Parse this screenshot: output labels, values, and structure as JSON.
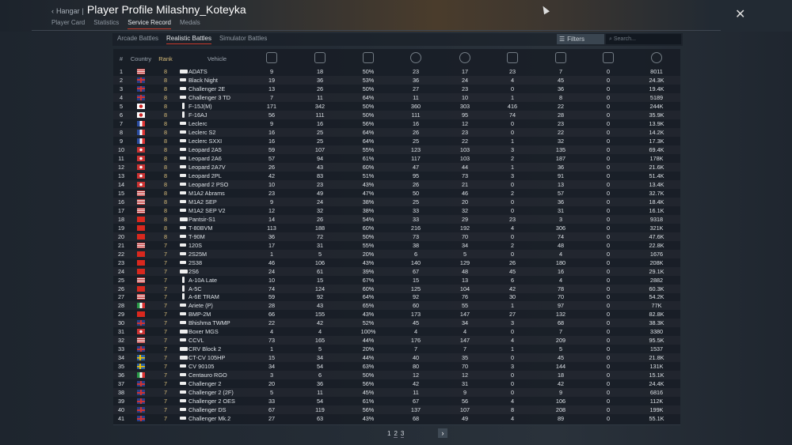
{
  "header": {
    "back_label": "Hangar",
    "title": "Player Profile Milashny_Koteyka"
  },
  "tabs": [
    "Player Card",
    "Statistics",
    "Service Record",
    "Medals"
  ],
  "active_tab": "Service Record",
  "subtabs": [
    "Arcade Battles",
    "Realistic Battles",
    "Simulator Battles"
  ],
  "active_subtab": "Realistic Battles",
  "filters_label": "Filters",
  "search_placeholder": "Search...",
  "columns": {
    "num": "#",
    "country": "Country",
    "rank": "Rank",
    "vehicle": "Vehicle",
    "icons": [
      "victories-icon",
      "battles-icon",
      "win-rate-icon",
      "respawns-icon",
      "deaths-icon",
      "air-kills-icon",
      "ground-kills-icon",
      "naval-kills-icon",
      "score-icon"
    ]
  },
  "rows": [
    [
      "us",
      8,
      "spaa",
      "ADATS",
      "9",
      "18",
      "50%",
      "23",
      "17",
      "23",
      "7",
      "0",
      "8011"
    ],
    [
      "uk",
      8,
      "tank",
      "Black Night",
      "19",
      "36",
      "53%",
      "36",
      "24",
      "4",
      "45",
      "0",
      "24.3K"
    ],
    [
      "uk",
      8,
      "tank",
      "Challenger 2E",
      "13",
      "26",
      "50%",
      "27",
      "23",
      "0",
      "36",
      "0",
      "19.4K"
    ],
    [
      "uk",
      8,
      "tank",
      "Challenger 3 TD",
      "7",
      "11",
      "64%",
      "11",
      "10",
      "1",
      "8",
      "0",
      "5189"
    ],
    [
      "jp",
      8,
      "jet",
      "F-15J(M)",
      "171",
      "342",
      "50%",
      "360",
      "303",
      "416",
      "22",
      "0",
      "244K"
    ],
    [
      "jp",
      8,
      "jet",
      "F-16AJ",
      "56",
      "111",
      "50%",
      "111",
      "95",
      "74",
      "28",
      "0",
      "35.9K"
    ],
    [
      "fr",
      8,
      "tank",
      "Leclerc",
      "9",
      "16",
      "56%",
      "16",
      "12",
      "0",
      "23",
      "0",
      "13.9K"
    ],
    [
      "fr",
      8,
      "tank",
      "Leclerc S2",
      "16",
      "25",
      "64%",
      "26",
      "23",
      "0",
      "22",
      "0",
      "14.2K"
    ],
    [
      "fr",
      8,
      "tank",
      "Leclerc SXXI",
      "16",
      "25",
      "64%",
      "25",
      "22",
      "1",
      "32",
      "0",
      "17.3K"
    ],
    [
      "de",
      8,
      "tank",
      "Leopard 2A5",
      "59",
      "107",
      "55%",
      "123",
      "103",
      "3",
      "135",
      "0",
      "69.4K"
    ],
    [
      "de",
      8,
      "tank",
      "Leopard 2A6",
      "57",
      "94",
      "61%",
      "117",
      "103",
      "2",
      "187",
      "0",
      "178K"
    ],
    [
      "de",
      8,
      "tank",
      "Leopard 2A7V",
      "26",
      "43",
      "60%",
      "47",
      "44",
      "1",
      "36",
      "0",
      "21.6K"
    ],
    [
      "de",
      8,
      "tank",
      "Leopard 2PL",
      "42",
      "83",
      "51%",
      "95",
      "73",
      "3",
      "91",
      "0",
      "51.4K"
    ],
    [
      "de",
      8,
      "tank",
      "Leopard 2 PSO",
      "10",
      "23",
      "43%",
      "26",
      "21",
      "0",
      "13",
      "0",
      "13.4K"
    ],
    [
      "us",
      8,
      "tank",
      "M1A2 Abrams",
      "23",
      "49",
      "47%",
      "50",
      "46",
      "2",
      "57",
      "0",
      "32.7K"
    ],
    [
      "us",
      8,
      "tank",
      "M1A2 SEP",
      "9",
      "24",
      "38%",
      "25",
      "20",
      "0",
      "36",
      "0",
      "18.4K"
    ],
    [
      "us",
      8,
      "tank",
      "M1A2 SEP V2",
      "12",
      "32",
      "38%",
      "33",
      "32",
      "0",
      "31",
      "0",
      "16.1K"
    ],
    [
      "cn",
      8,
      "spaa",
      "Pantsir-S1",
      "14",
      "26",
      "54%",
      "33",
      "29",
      "23",
      "3",
      "0",
      "9318"
    ],
    [
      "cn",
      8,
      "tank",
      "T-80BVM",
      "113",
      "188",
      "60%",
      "216",
      "192",
      "4",
      "306",
      "0",
      "321K"
    ],
    [
      "cn",
      8,
      "tank",
      "T-90M",
      "36",
      "72",
      "50%",
      "73",
      "70",
      "0",
      "74",
      "0",
      "47.6K"
    ],
    [
      "us",
      7,
      "tank",
      "120S",
      "17",
      "31",
      "55%",
      "38",
      "34",
      "2",
      "48",
      "0",
      "22.8K"
    ],
    [
      "cn",
      7,
      "tank",
      "2S25M",
      "1",
      "5",
      "20%",
      "6",
      "5",
      "0",
      "4",
      "0",
      "1676"
    ],
    [
      "cn",
      7,
      "tank",
      "2S38",
      "46",
      "106",
      "43%",
      "140",
      "129",
      "26",
      "180",
      "0",
      "208K"
    ],
    [
      "cn",
      7,
      "spaa",
      "2S6",
      "24",
      "61",
      "39%",
      "67",
      "48",
      "45",
      "16",
      "0",
      "29.1K"
    ],
    [
      "us",
      7,
      "plane",
      "A-10A Late",
      "10",
      "15",
      "67%",
      "15",
      "13",
      "6",
      "4",
      "0",
      "2882"
    ],
    [
      "cn",
      7,
      "jet",
      "A-5C",
      "74",
      "124",
      "60%",
      "125",
      "104",
      "42",
      "78",
      "0",
      "60.3K"
    ],
    [
      "us",
      7,
      "plane",
      "A-6E TRAM",
      "59",
      "92",
      "64%",
      "92",
      "76",
      "30",
      "70",
      "0",
      "54.2K"
    ],
    [
      "it",
      7,
      "tank",
      "Ariete (P)",
      "28",
      "43",
      "65%",
      "60",
      "55",
      "1",
      "97",
      "0",
      "77K"
    ],
    [
      "cn",
      7,
      "tank",
      "BMP-2M",
      "66",
      "155",
      "43%",
      "173",
      "147",
      "27",
      "132",
      "0",
      "82.8K"
    ],
    [
      "uk",
      7,
      "tank",
      "Bhishma TWMP",
      "22",
      "42",
      "52%",
      "45",
      "34",
      "3",
      "68",
      "0",
      "38.3K"
    ],
    [
      "de",
      7,
      "spaa",
      "Boxer MGS",
      "4",
      "4",
      "100%",
      "4",
      "4",
      "0",
      "7",
      "0",
      "3380"
    ],
    [
      "us",
      7,
      "tank",
      "CCVL",
      "73",
      "165",
      "44%",
      "176",
      "147",
      "4",
      "209",
      "0",
      "95.5K"
    ],
    [
      "uk",
      7,
      "spaa",
      "CRV Block 2",
      "1",
      "5",
      "20%",
      "7",
      "7",
      "1",
      "5",
      "0",
      "1537"
    ],
    [
      "se",
      7,
      "spaa",
      "CT-CV 105HP",
      "15",
      "34",
      "44%",
      "40",
      "35",
      "0",
      "45",
      "0",
      "21.8K"
    ],
    [
      "se",
      7,
      "tank",
      "CV 90105",
      "34",
      "54",
      "63%",
      "80",
      "70",
      "3",
      "144",
      "0",
      "131K"
    ],
    [
      "it",
      7,
      "tank",
      "Centauro RGO",
      "3",
      "6",
      "50%",
      "12",
      "12",
      "0",
      "18",
      "0",
      "15.1K"
    ],
    [
      "uk",
      7,
      "tank",
      "Challenger 2",
      "20",
      "36",
      "56%",
      "42",
      "31",
      "0",
      "42",
      "0",
      "24.4K"
    ],
    [
      "uk",
      7,
      "tank",
      "Challenger 2 (2F)",
      "5",
      "11",
      "45%",
      "11",
      "9",
      "0",
      "9",
      "0",
      "6816"
    ],
    [
      "uk",
      7,
      "tank",
      "Challenger 2 OES",
      "33",
      "54",
      "61%",
      "67",
      "56",
      "4",
      "106",
      "0",
      "112K"
    ],
    [
      "uk",
      7,
      "tank",
      "Challenger DS",
      "67",
      "119",
      "56%",
      "137",
      "107",
      "8",
      "208",
      "0",
      "199K"
    ],
    [
      "uk",
      7,
      "tank",
      "Challenger Mk.2",
      "27",
      "63",
      "43%",
      "68",
      "49",
      "4",
      "89",
      "0",
      "55.1K"
    ]
  ],
  "pagination": {
    "pages": [
      "1",
      "2",
      "3"
    ],
    "current": "1",
    "next_icon": "chevron-right-icon"
  },
  "colors": {
    "accent": "#c8392b",
    "rank": "#d9bd7a",
    "background": "#1a2029"
  }
}
